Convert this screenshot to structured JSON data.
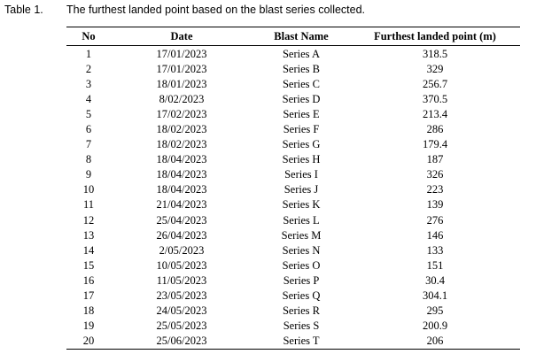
{
  "caption": {
    "label": "Table 1.",
    "title": "The furthest landed point based on the blast series collected."
  },
  "table": {
    "header": [
      "No",
      "Date",
      "Blast Name",
      "Furthest landed point (m)"
    ],
    "rows": [
      [
        "1",
        "17/01/2023",
        "Series A",
        "318.5"
      ],
      [
        "2",
        "17/01/2023",
        "Series B",
        "329"
      ],
      [
        "3",
        "18/01/2023",
        "Series C",
        "256.7"
      ],
      [
        "4",
        "8/02/2023",
        "Series D",
        "370.5"
      ],
      [
        "5",
        "17/02/2023",
        "Series E",
        "213.4"
      ],
      [
        "6",
        "18/02/2023",
        "Series F",
        "286"
      ],
      [
        "7",
        "18/02/2023",
        "Series G",
        "179.4"
      ],
      [
        "8",
        "18/04/2023",
        "Series H",
        "187"
      ],
      [
        "9",
        "18/04/2023",
        "Series I",
        "326"
      ],
      [
        "10",
        "18/04/2023",
        "Series J",
        "223"
      ],
      [
        "11",
        "21/04/2023",
        "Series K",
        "139"
      ],
      [
        "12",
        "25/04/2023",
        "Series L",
        "276"
      ],
      [
        "13",
        "26/04/2023",
        "Series M",
        "146"
      ],
      [
        "14",
        "2/05/2023",
        "Series N",
        "133"
      ],
      [
        "15",
        "10/05/2023",
        "Series O",
        "151"
      ],
      [
        "16",
        "11/05/2023",
        "Series P",
        "30.4"
      ],
      [
        "17",
        "23/05/2023",
        "Series Q",
        "304.1"
      ],
      [
        "18",
        "24/05/2023",
        "Series R",
        "295"
      ],
      [
        "19",
        "25/05/2023",
        "Series S",
        "200.9"
      ],
      [
        "20",
        "25/06/2023",
        "Series T",
        "206"
      ]
    ]
  }
}
